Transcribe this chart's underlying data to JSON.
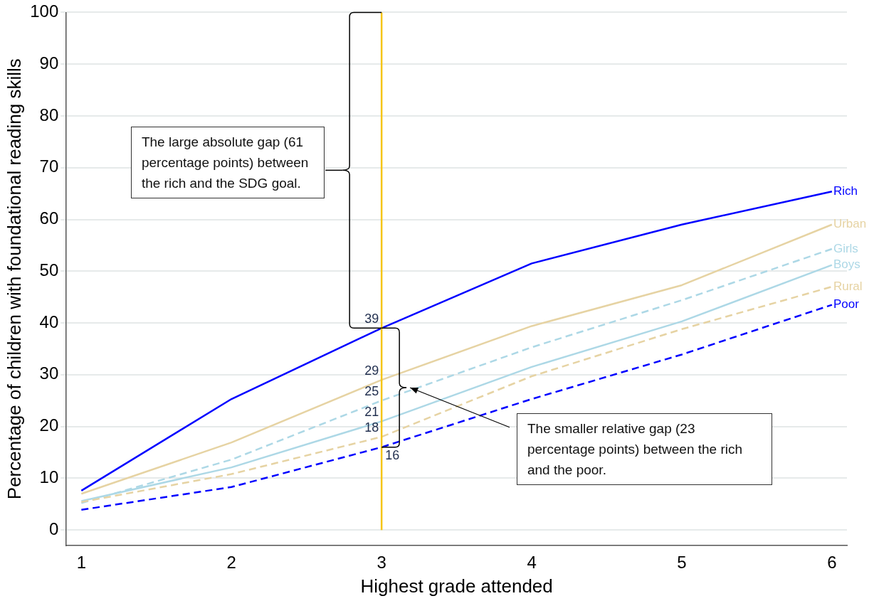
{
  "chart_data": {
    "type": "line",
    "xlabel": "Highest grade attended",
    "ylabel": "Percentage of children with foundational reading skills",
    "x": [
      1,
      2,
      3,
      4,
      5,
      6
    ],
    "xlim": [
      0.9,
      6.1
    ],
    "xticks": [
      1,
      2,
      3,
      4,
      5,
      6
    ],
    "ylim": [
      -3,
      100
    ],
    "yticks": [
      0,
      10,
      20,
      30,
      40,
      50,
      60,
      70,
      80,
      90,
      100
    ],
    "grid": "y",
    "marker": "none",
    "series": [
      {
        "name": "Rich",
        "color": "#0000ff",
        "line_style": "solid",
        "values": [
          7.6,
          25.3,
          39,
          51.5,
          59.0,
          65.4
        ],
        "value_labels": [
          null,
          null,
          "39",
          null,
          null,
          null
        ]
      },
      {
        "name": "Urban",
        "color": "#e6d3a3",
        "line_style": "solid",
        "values": [
          7.0,
          16.9,
          29,
          39.4,
          47.3,
          59.0
        ],
        "value_labels": [
          null,
          null,
          "29",
          null,
          null,
          null
        ]
      },
      {
        "name": "Girls",
        "color": "#add8e6",
        "line_style": "dashed",
        "values": [
          5.2,
          13.6,
          25,
          35.3,
          44.4,
          54.3
        ],
        "value_labels": [
          null,
          null,
          "25",
          null,
          null,
          null
        ]
      },
      {
        "name": "Boys",
        "color": "#add8e6",
        "line_style": "solid",
        "values": [
          5.6,
          12.1,
          21,
          31.5,
          40.3,
          51.2
        ],
        "value_labels": [
          null,
          null,
          "21",
          null,
          null,
          null
        ]
      },
      {
        "name": "Rural",
        "color": "#e6d3a3",
        "line_style": "dashed",
        "values": [
          5.4,
          10.8,
          18,
          29.7,
          38.8,
          47.0
        ],
        "value_labels": [
          null,
          null,
          "18",
          null,
          null,
          null
        ]
      },
      {
        "name": "Poor",
        "color": "#0000ff",
        "line_style": "dashed",
        "values": [
          3.9,
          8.3,
          16,
          25.3,
          33.9,
          43.5
        ],
        "value_labels": [
          null,
          null,
          "16",
          null,
          null,
          null
        ]
      }
    ],
    "ref_lines": [
      {
        "axis": "x",
        "value": 3,
        "color": "#f5c518"
      }
    ],
    "annotations": [
      "The large absolute gap (61 percentage points) between the rich and the SDG goal.",
      "The smaller relative gap (23 percentage points) between the rich and the poor."
    ]
  }
}
